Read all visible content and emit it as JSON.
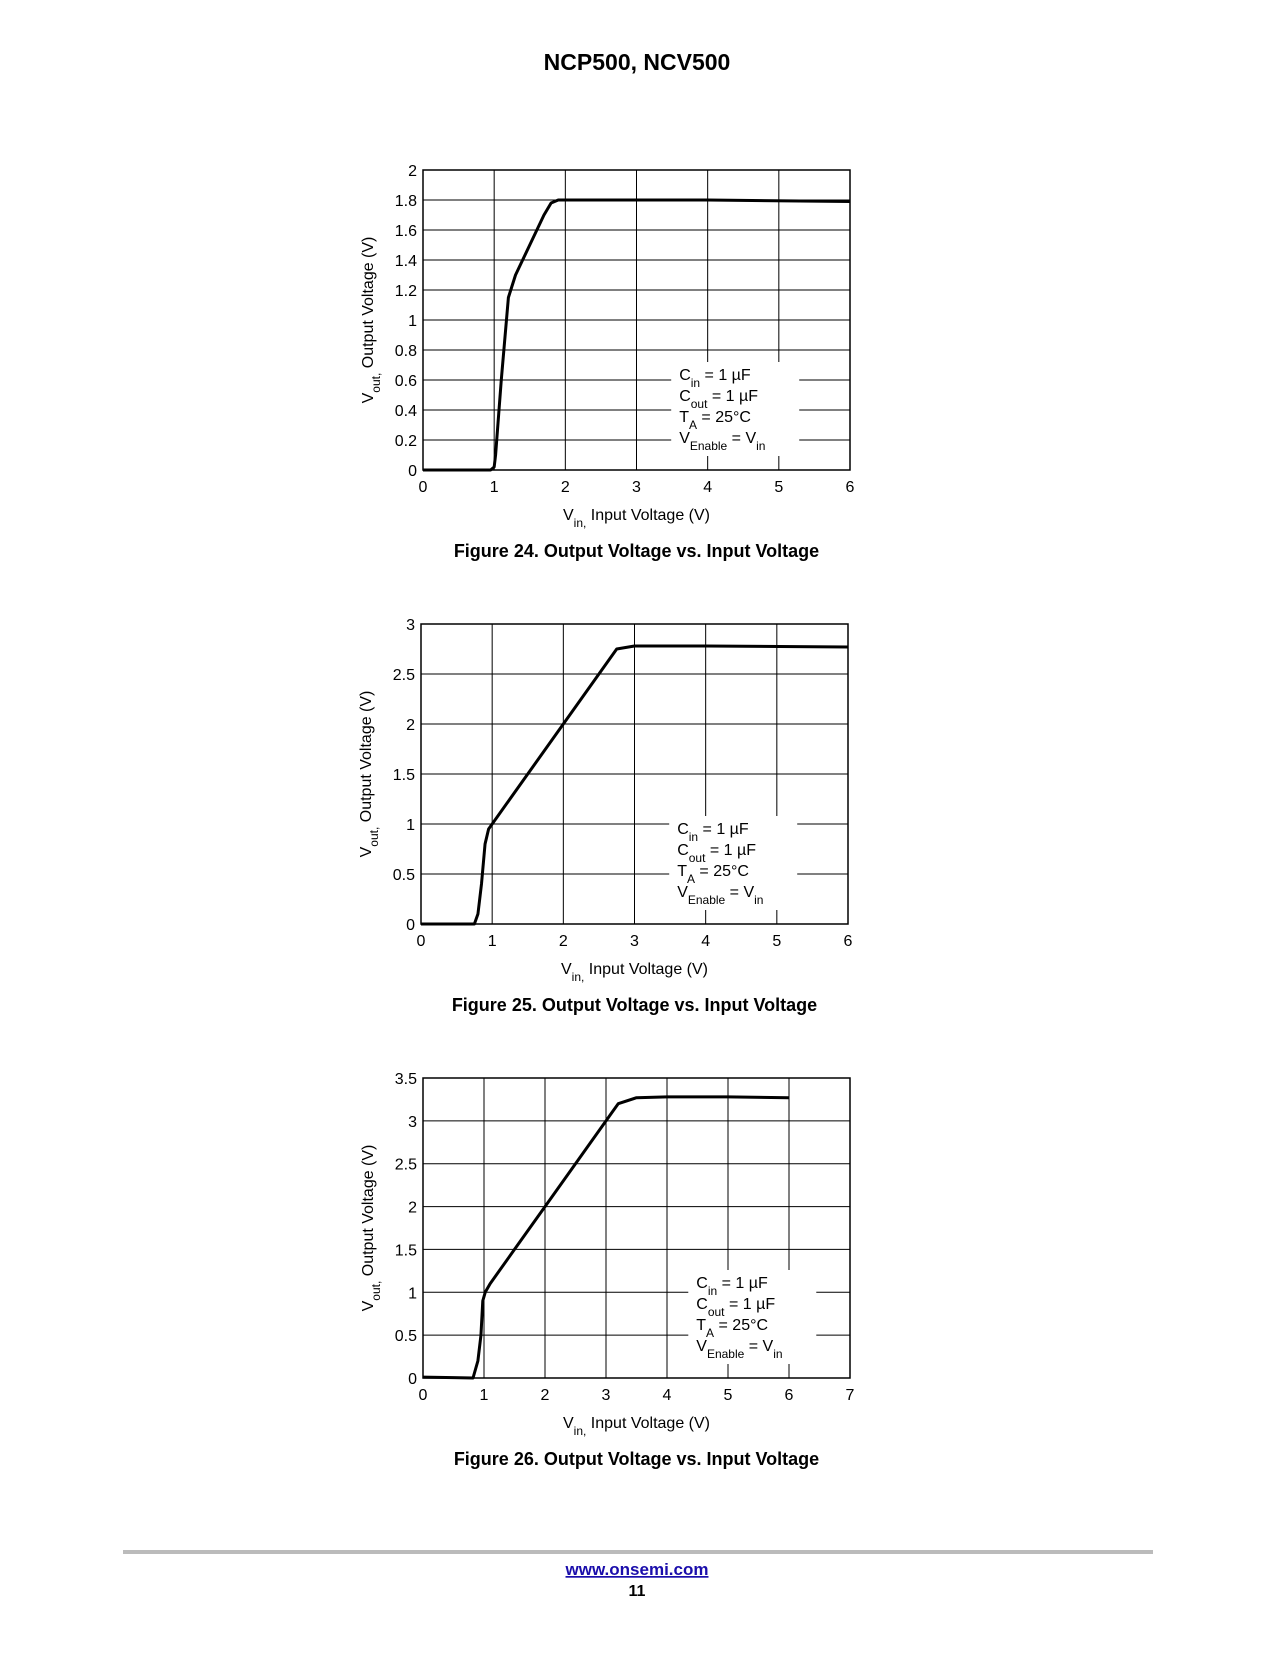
{
  "header": {
    "title": "NCP500, NCV500"
  },
  "chart_data": [
    {
      "type": "line",
      "caption": "Figure 24. Output Voltage vs. Input Voltage",
      "xlabel": [
        "V",
        "in,",
        " Input Voltage (V)"
      ],
      "ylabel": [
        "V",
        "out,",
        " Output Voltage (V)"
      ],
      "annotation": [
        [
          "C",
          "in",
          " = 1 µF"
        ],
        [
          "C",
          "out",
          " = 1 µF"
        ],
        [
          "T",
          "A",
          " = 25°C"
        ],
        [
          "V",
          "Enable",
          " = V",
          "in"
        ]
      ],
      "x": [
        0,
        0.5,
        0.95,
        1.0,
        1.02,
        1.1,
        1.2,
        1.3,
        1.5,
        1.7,
        1.8,
        1.9,
        2.5,
        4,
        6
      ],
      "series": [
        {
          "color": "#000000",
          "values": [
            0,
            0,
            0,
            0.02,
            0.1,
            0.6,
            1.15,
            1.3,
            1.5,
            1.7,
            1.78,
            1.8,
            1.8,
            1.8,
            1.79
          ]
        }
      ],
      "xlim": [
        0,
        6
      ],
      "ylim": [
        0,
        2
      ],
      "xticks": [
        0,
        1,
        2,
        3,
        4,
        5,
        6
      ],
      "yticks": [
        0,
        0.2,
        0.4,
        0.6,
        0.8,
        1,
        1.2,
        1.4,
        1.6,
        1.8,
        2
      ],
      "grid": true
    },
    {
      "type": "line",
      "caption": "Figure 25. Output Voltage vs. Input Voltage",
      "xlabel": [
        "V",
        "in,",
        " Input Voltage (V)"
      ],
      "ylabel": [
        "V",
        "out,",
        " Output Voltage (V)"
      ],
      "annotation": [
        [
          "C",
          "in",
          " = 1 µF"
        ],
        [
          "C",
          "out",
          " = 1 µF"
        ],
        [
          "T",
          "A",
          " = 25°C"
        ],
        [
          "V",
          "Enable",
          " = V",
          "in"
        ]
      ],
      "x": [
        0,
        0.5,
        0.75,
        0.8,
        0.85,
        0.9,
        0.95,
        1.0,
        1.5,
        2.0,
        2.5,
        2.65,
        2.75,
        3.0,
        4,
        6
      ],
      "series": [
        {
          "color": "#000000",
          "values": [
            0,
            0,
            0,
            0.1,
            0.4,
            0.8,
            0.95,
            1.0,
            1.5,
            2.0,
            2.5,
            2.65,
            2.75,
            2.78,
            2.78,
            2.77
          ]
        }
      ],
      "xlim": [
        0,
        6
      ],
      "ylim": [
        0,
        3
      ],
      "xticks": [
        0,
        1,
        2,
        3,
        4,
        5,
        6
      ],
      "yticks": [
        0,
        0.5,
        1,
        1.5,
        2,
        2.5,
        3
      ],
      "grid": true
    },
    {
      "type": "line",
      "caption": "Figure 26. Output Voltage vs. Input Voltage",
      "xlabel": [
        "V",
        "in,",
        " Input Voltage (V)"
      ],
      "ylabel": [
        "V",
        "out,",
        " Output Voltage (V)"
      ],
      "annotation": [
        [
          "C",
          "in",
          " = 1 µF"
        ],
        [
          "C",
          "out",
          " = 1 µF"
        ],
        [
          "T",
          "A",
          " = 25°C"
        ],
        [
          "V",
          "Enable",
          " = V",
          "in"
        ]
      ],
      "x": [
        0,
        0.5,
        0.82,
        0.9,
        0.95,
        0.98,
        1.02,
        1.1,
        1.5,
        2,
        2.5,
        3,
        3.1,
        3.2,
        3.5,
        4,
        5,
        6
      ],
      "series": [
        {
          "color": "#000000",
          "values": [
            0.01,
            0.005,
            0,
            0.2,
            0.5,
            0.9,
            1.0,
            1.1,
            1.5,
            2.0,
            2.5,
            3.0,
            3.1,
            3.2,
            3.27,
            3.28,
            3.28,
            3.27
          ]
        }
      ],
      "xlim": [
        0,
        7
      ],
      "ylim": [
        0,
        3.5
      ],
      "xticks": [
        0,
        1,
        2,
        3,
        4,
        5,
        6,
        7
      ],
      "yticks": [
        0,
        0.5,
        1,
        1.5,
        2,
        2.5,
        3,
        3.5
      ],
      "grid": true
    }
  ],
  "footer": {
    "url": "www.onsemi.com",
    "page": "11"
  }
}
